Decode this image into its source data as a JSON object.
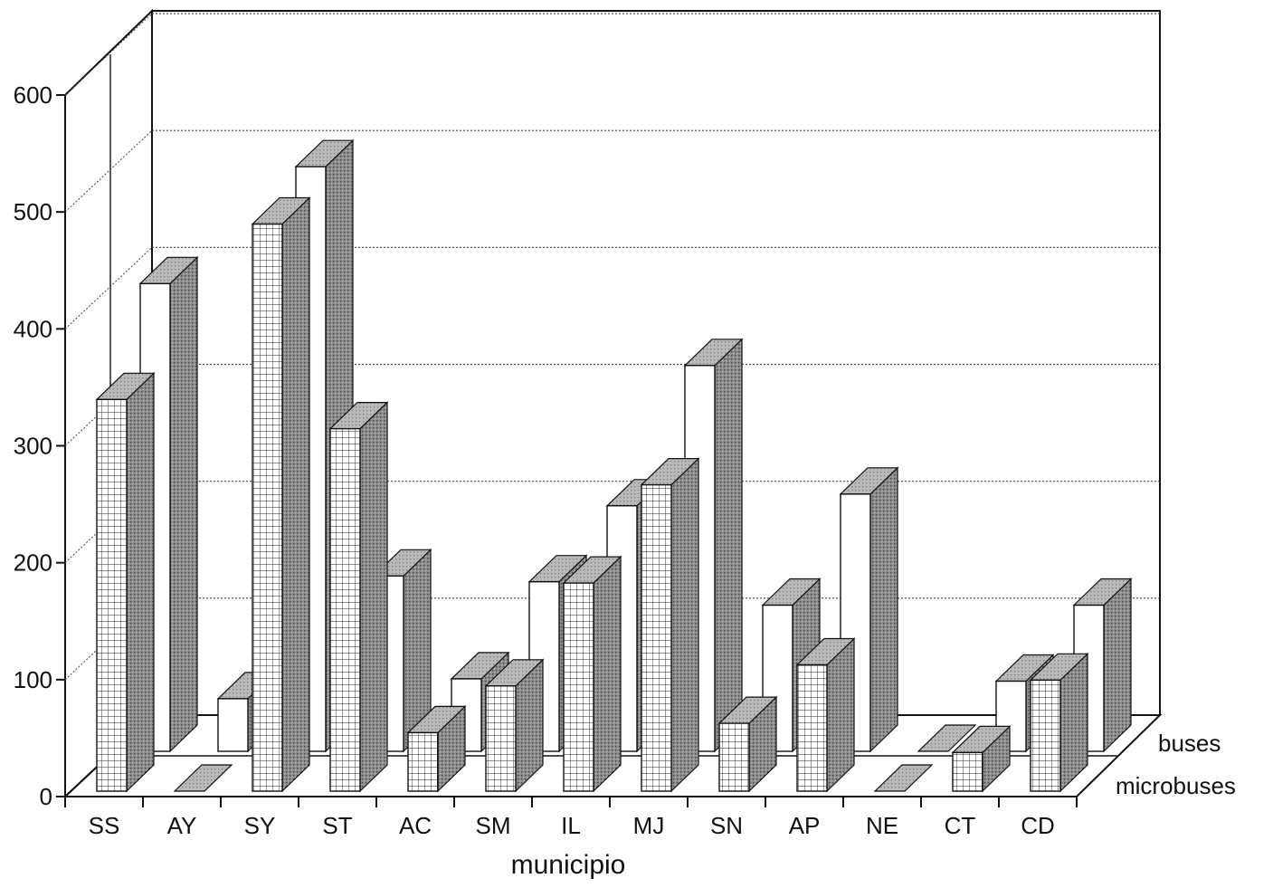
{
  "chart_data": {
    "type": "bar",
    "style": "3d-clustered-depth",
    "xlabel": "municipio",
    "ylabel": "",
    "ylim": [
      0,
      600
    ],
    "yticks": [
      0,
      100,
      200,
      300,
      400,
      500,
      600
    ],
    "grid": true,
    "categories": [
      "SS",
      "AY",
      "SY",
      "ST",
      "AC",
      "SM",
      "IL",
      "MJ",
      "SN",
      "AP",
      "NE",
      "CT",
      "CD"
    ],
    "series": [
      {
        "name": "microbuses",
        "pattern": "grid",
        "values": [
          335,
          1,
          485,
          310,
          50,
          90,
          178,
          262,
          58,
          108,
          1,
          33,
          95
        ]
      },
      {
        "name": "buses",
        "pattern": "plain",
        "values": [
          400,
          45,
          500,
          150,
          62,
          145,
          210,
          330,
          125,
          220,
          1,
          60,
          125
        ]
      }
    ],
    "colors": {
      "front_face": "#ffffff",
      "side_face": "#7a7a7a",
      "top_face": "#b5b5b5",
      "line": "#111111"
    }
  }
}
